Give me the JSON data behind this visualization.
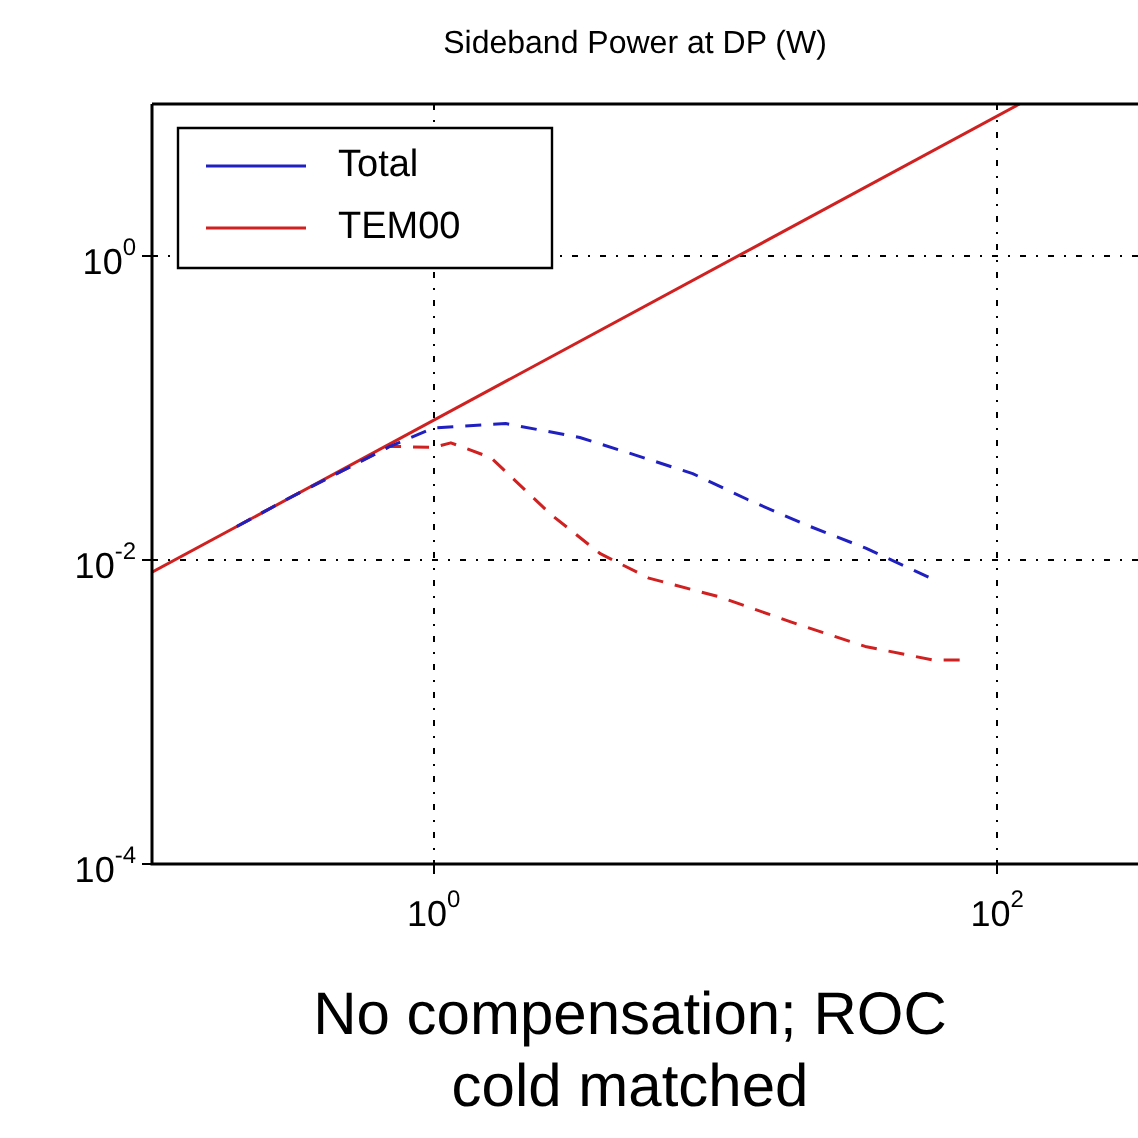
{
  "chart_data": {
    "type": "line",
    "title": "Sideband Power at DP (W)",
    "annotations": [
      "No compensation; ROC cold matched"
    ],
    "log": "xy",
    "xlim": [
      0.1,
      316
    ],
    "ylim": [
      0.0001,
      10
    ],
    "xticks": [
      {
        "value": 1,
        "label": "10$^{0}$"
      },
      {
        "value": 100,
        "label": "10$^{2}$"
      }
    ],
    "yticks": [
      {
        "value": 0.0001,
        "label": "10$^{-4}$"
      },
      {
        "value": 0.01,
        "label": "10$^{-2}$"
      },
      {
        "value": 1,
        "label": "10$^{0}$"
      }
    ],
    "grid": true,
    "legend": "top left",
    "marker": "none",
    "series": [
      {
        "color": "#d02020",
        "line_style": "solid",
        "x": [
          0.1,
          120
        ],
        "values": [
          0.0083,
          10
        ]
      },
      {
        "name": "Total",
        "color": "#2020c0",
        "line_style": "dashed",
        "x": [
          0.2,
          0.3,
          0.7,
          1,
          1.8,
          3.3,
          5.2,
          8.3,
          13,
          21,
          34,
          58
        ],
        "values": [
          0.0166,
          0.025,
          0.056,
          0.074,
          0.079,
          0.064,
          0.049,
          0.037,
          0.025,
          0.017,
          0.012,
          0.0076
        ]
      },
      {
        "name": "TEM00",
        "color": "#d02020",
        "line_style": "dashed",
        "x": [
          0.2,
          0.3,
          0.7,
          1,
          1.15,
          1.6,
          2.6,
          3.9,
          5.8,
          10.4,
          18.6,
          34,
          59,
          74
        ],
        "values": [
          0.0166,
          0.025,
          0.056,
          0.055,
          0.059,
          0.047,
          0.02,
          0.011,
          0.0076,
          0.0057,
          0.0039,
          0.0027,
          0.0022,
          0.0022
        ]
      }
    ]
  }
}
